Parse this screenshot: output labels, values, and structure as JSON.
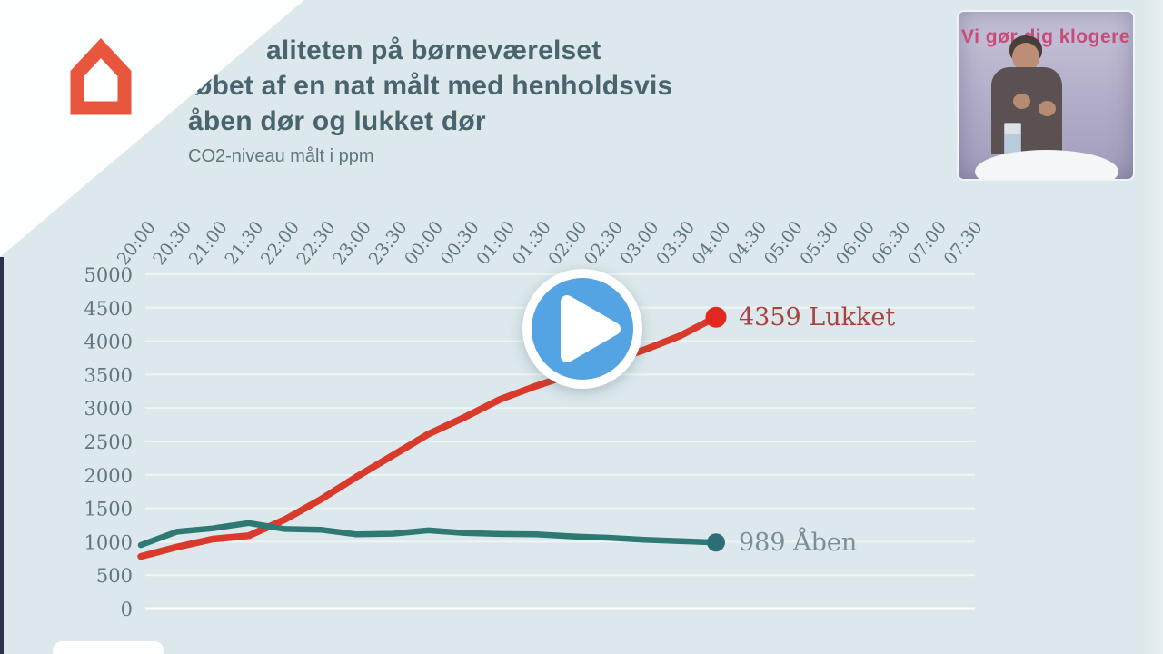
{
  "branding": {
    "channel_caption": "Vi gør dig klogere"
  },
  "colors": {
    "background": "#dce8eb",
    "accent_red": "#e8573d",
    "caption_pink": "#c84b78",
    "play_blue": "#54a4e4",
    "title_text": "#4a646e",
    "axis_text": "#61767f"
  },
  "chart_data": {
    "type": "line",
    "title_lines": [
      "aliteten på børneværelset",
      "øbet af en nat målt med henholdsvis",
      "åben dør og lukket dør"
    ],
    "subtitle": "CO2-niveau målt i ppm",
    "x_ticks": [
      "20:00",
      "20:30",
      "21:00",
      "21:30",
      "22:00",
      "22:30",
      "23:00",
      "23:30",
      "00:00",
      "00:30",
      "01:00",
      "01:30",
      "02:00",
      "02:30",
      "03:00",
      "03:30",
      "04:00",
      "04:30",
      "05:00",
      "05:30",
      "06:00",
      "06:30",
      "07:00",
      "07:30"
    ],
    "y_ticks": [
      0,
      500,
      1000,
      1500,
      2000,
      2500,
      3000,
      3500,
      4000,
      4500,
      5000
    ],
    "ylim": [
      0,
      5000
    ],
    "grid": "horizontal",
    "legend_position": "end-of-line",
    "series": [
      {
        "name": "Lukket",
        "color": "#d93a2c",
        "dot_color": "#e3291f",
        "label_color": "#a8433f",
        "end_label": "4359 Lukket",
        "end_value": 4359,
        "x": [
          "20:00",
          "20:30",
          "21:00",
          "21:30",
          "22:00",
          "22:30",
          "23:00",
          "23:30",
          "00:00",
          "00:30",
          "01:00",
          "01:30",
          "02:00",
          "02:30",
          "03:00",
          "03:30",
          "04:00"
        ],
        "values": [
          780,
          920,
          1040,
          1090,
          1330,
          1630,
          1970,
          2290,
          2610,
          2860,
          3130,
          3330,
          3510,
          3680,
          3870,
          4080,
          4359
        ]
      },
      {
        "name": "Åben",
        "color": "#2e7973",
        "dot_color": "#2d6e76",
        "label_color": "#7b8f96",
        "end_label": "989 Åben",
        "end_value": 989,
        "x": [
          "20:00",
          "20:30",
          "21:00",
          "21:30",
          "22:00",
          "22:30",
          "23:00",
          "23:30",
          "00:00",
          "00:30",
          "01:00",
          "01:30",
          "02:00",
          "02:30",
          "03:00",
          "03:30",
          "04:00"
        ],
        "values": [
          950,
          1150,
          1200,
          1280,
          1190,
          1180,
          1110,
          1120,
          1170,
          1130,
          1115,
          1110,
          1080,
          1060,
          1030,
          1010,
          989
        ]
      }
    ]
  }
}
